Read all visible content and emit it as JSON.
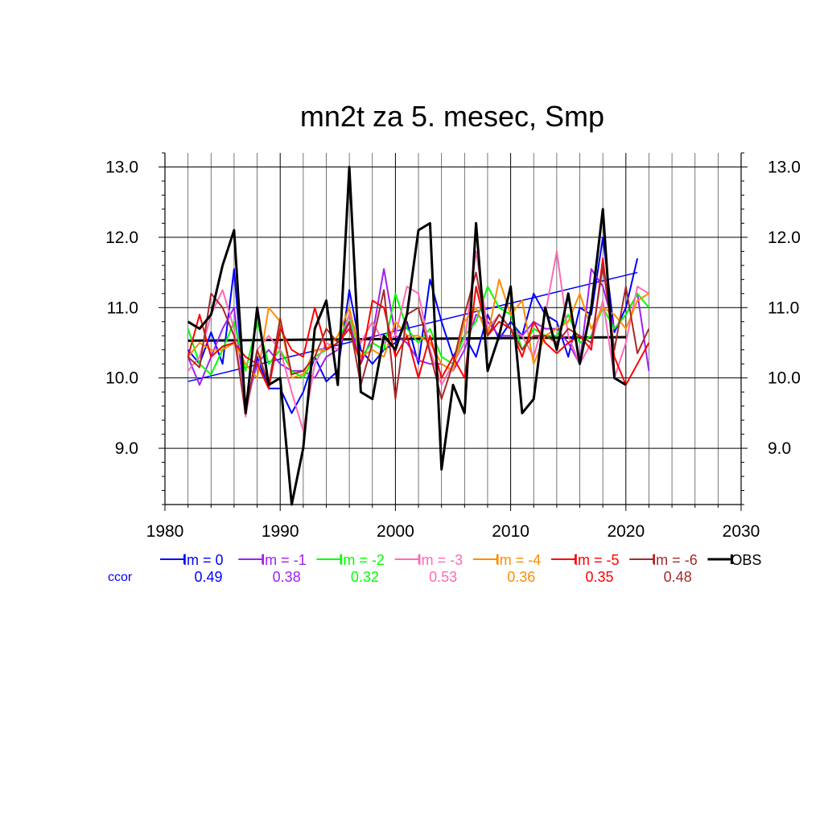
{
  "chart_data": {
    "type": "line",
    "title": "mn2t za 5. mesec, Smp",
    "xlabel": "",
    "ylabel": "",
    "xlim": [
      1980,
      2030
    ],
    "ylim": [
      8.2,
      13.2
    ],
    "x_ticks": [
      "1980",
      "1990",
      "2000",
      "2010",
      "2020",
      "2030"
    ],
    "y_ticks": [
      "9.0",
      "10.0",
      "11.0",
      "12.0",
      "13.0"
    ],
    "x_tick_values": [
      1980,
      1990,
      2000,
      2010,
      2020,
      2030
    ],
    "y_tick_values": [
      9,
      10,
      11,
      12,
      13
    ],
    "grid": "on",
    "legend_position": "bottom",
    "ccor_label": "ccor",
    "series": [
      {
        "name": "lm = 0",
        "color": "#0000ff",
        "ccor": "0.49",
        "x": [
          1982,
          1983,
          1984,
          1985,
          1986,
          1987,
          1988,
          1989,
          1990,
          1991,
          1992,
          1993,
          1994,
          1995,
          1996,
          1997,
          1998,
          1999,
          2000,
          2001,
          2002,
          2003,
          2004,
          2005,
          2006,
          2007,
          2008,
          2009,
          2010,
          2011,
          2012,
          2013,
          2014,
          2015,
          2016,
          2017,
          2018,
          2019,
          2020,
          2021
        ],
        "y": [
          10.4,
          10.2,
          10.65,
          10.2,
          11.55,
          9.5,
          10.3,
          9.85,
          9.85,
          9.5,
          9.8,
          10.3,
          9.95,
          10.1,
          11.25,
          10.4,
          10.2,
          10.4,
          10.5,
          10.8,
          10.2,
          11.4,
          10.8,
          10.3,
          10.6,
          10.3,
          10.9,
          10.55,
          10.8,
          10.6,
          11.2,
          10.9,
          10.8,
          10.3,
          11.0,
          10.9,
          12.0,
          10.65,
          11.0,
          11.7
        ],
        "trend": [
          [
            1982,
            9.95
          ],
          [
            2021,
            11.5
          ]
        ]
      },
      {
        "name": "lm = -1",
        "color": "#a020f0",
        "ccor": "0.38",
        "x": [
          1982,
          1983,
          1984,
          1985,
          1986,
          1987,
          1988,
          1989,
          1990,
          1991,
          1992,
          1993,
          1994,
          1995,
          1996,
          1997,
          1998,
          1999,
          2000,
          2001,
          2002,
          2003,
          2004,
          2005,
          2006,
          2007,
          2008,
          2009,
          2010,
          2011,
          2012,
          2013,
          2014,
          2015,
          2016,
          2017,
          2018,
          2019,
          2020,
          2021,
          2022
        ],
        "y": [
          10.3,
          9.9,
          10.3,
          10.7,
          11.0,
          9.6,
          10.2,
          10.4,
          10.2,
          10.1,
          10.1,
          10.0,
          10.3,
          10.4,
          10.8,
          10.2,
          10.6,
          11.55,
          10.6,
          10.5,
          10.25,
          10.2,
          10.2,
          10.1,
          10.4,
          10.9,
          10.8,
          10.6,
          10.6,
          10.6,
          10.8,
          10.7,
          10.7,
          10.5,
          10.2,
          11.55,
          11.3,
          10.7,
          10.9,
          11.2,
          10.1
        ]
      },
      {
        "name": "lm = -2",
        "color": "#00ff00",
        "ccor": "0.32",
        "x": [
          1982,
          1983,
          1984,
          1985,
          1986,
          1987,
          1988,
          1989,
          1990,
          1991,
          1992,
          1993,
          1994,
          1995,
          1996,
          1997,
          1998,
          1999,
          2000,
          2001,
          2002,
          2003,
          2004,
          2005,
          2006,
          2007,
          2008,
          2009,
          2010,
          2011,
          2012,
          2013,
          2014,
          2015,
          2016,
          2017,
          2018,
          2019,
          2020,
          2021,
          2022
        ],
        "y": [
          10.7,
          10.2,
          10.05,
          10.4,
          10.8,
          10.1,
          10.8,
          10.2,
          10.4,
          10.1,
          10.0,
          10.3,
          10.4,
          10.5,
          10.9,
          10.3,
          10.5,
          10.4,
          11.2,
          10.7,
          10.5,
          10.7,
          10.3,
          10.2,
          10.6,
          10.8,
          11.3,
          11.0,
          10.9,
          10.4,
          10.7,
          10.6,
          10.6,
          10.9,
          10.5,
          10.6,
          11.0,
          10.7,
          10.9,
          11.2,
          11.0
        ]
      },
      {
        "name": "lm = -3",
        "color": "#ff69b4",
        "ccor": "0.53",
        "x": [
          1982,
          1983,
          1984,
          1985,
          1986,
          1987,
          1988,
          1989,
          1990,
          1991,
          1992,
          1993,
          1994,
          1995,
          1996,
          1997,
          1998,
          1999,
          2000,
          2001,
          2002,
          2003,
          2004,
          2005,
          2006,
          2007,
          2008,
          2009,
          2010,
          2011,
          2012,
          2013,
          2014,
          2015,
          2016,
          2017,
          2018,
          2019,
          2020,
          2021,
          2022
        ],
        "y": [
          10.1,
          10.3,
          10.9,
          11.25,
          10.7,
          9.45,
          10.4,
          10.6,
          10.4,
          9.8,
          9.25,
          10.2,
          10.5,
          10.4,
          10.9,
          10.5,
          10.8,
          10.5,
          10.6,
          11.3,
          11.2,
          10.4,
          9.9,
          10.2,
          10.5,
          11.8,
          10.7,
          10.9,
          10.7,
          10.6,
          10.3,
          10.9,
          11.8,
          10.6,
          10.2,
          10.5,
          11.1,
          10.0,
          10.5,
          11.3,
          11.2
        ]
      },
      {
        "name": "lm = -4",
        "color": "#ff8c00",
        "ccor": "0.36",
        "x": [
          1982,
          1983,
          1984,
          1985,
          1986,
          1987,
          1988,
          1989,
          1990,
          1991,
          1992,
          1993,
          1994,
          1995,
          1996,
          1997,
          1998,
          1999,
          2000,
          2001,
          2002,
          2003,
          2004,
          2005,
          2006,
          2007,
          2008,
          2009,
          2010,
          2011,
          2012,
          2013,
          2014,
          2015,
          2016,
          2017,
          2018,
          2019,
          2020,
          2021,
          2022
        ],
        "y": [
          10.3,
          10.5,
          10.4,
          10.4,
          10.5,
          10.2,
          10.0,
          11.0,
          10.8,
          10.0,
          10.05,
          10.4,
          10.4,
          10.6,
          11.0,
          10.3,
          10.4,
          10.3,
          10.8,
          10.6,
          10.6,
          10.5,
          10.2,
          10.1,
          10.8,
          11.0,
          10.6,
          11.4,
          10.9,
          11.1,
          10.2,
          10.6,
          10.7,
          10.8,
          11.2,
          10.7,
          11.0,
          10.9,
          10.7,
          11.1,
          11.2
        ]
      },
      {
        "name": "lm = -5",
        "color": "#ff0000",
        "ccor": "0.35",
        "x": [
          1982,
          1983,
          1984,
          1985,
          1986,
          1987,
          1988,
          1989,
          1990,
          1991,
          1992,
          1993,
          1994,
          1995,
          1996,
          1997,
          1998,
          1999,
          2000,
          2001,
          2002,
          2003,
          2004,
          2005,
          2006,
          2007,
          2008,
          2009,
          2010,
          2011,
          2012,
          2013,
          2014,
          2015,
          2016,
          2017,
          2018,
          2019,
          2020,
          2021,
          2022
        ],
        "y": [
          10.3,
          10.9,
          10.3,
          10.45,
          10.5,
          10.3,
          10.2,
          9.85,
          10.7,
          10.4,
          10.3,
          11.0,
          10.4,
          10.5,
          10.7,
          10.2,
          11.1,
          11.0,
          10.3,
          10.6,
          10.0,
          10.6,
          10.0,
          10.3,
          10.0,
          11.3,
          10.6,
          10.8,
          10.7,
          10.3,
          10.8,
          10.5,
          10.35,
          10.5,
          10.6,
          10.4,
          11.7,
          10.3,
          9.9,
          10.2,
          10.5
        ]
      },
      {
        "name": "lm = -6",
        "color": "#a52a2a",
        "ccor": "0.48",
        "x": [
          1982,
          1983,
          1984,
          1985,
          1986,
          1987,
          1988,
          1989,
          1990,
          1991,
          1992,
          1993,
          1994,
          1995,
          1996,
          1997,
          1998,
          1999,
          2000,
          2001,
          2002,
          2003,
          2004,
          2005,
          2006,
          2007,
          2008,
          2009,
          2010,
          2011,
          2012,
          2013,
          2014,
          2015,
          2016,
          2017,
          2018,
          2019,
          2020,
          2021,
          2022
        ],
        "y": [
          10.3,
          10.15,
          11.2,
          11.0,
          10.6,
          9.5,
          10.4,
          9.9,
          10.85,
          10.05,
          10.1,
          10.3,
          10.7,
          10.5,
          10.8,
          9.9,
          10.5,
          11.25,
          9.7,
          10.9,
          11.0,
          10.35,
          9.7,
          10.2,
          10.9,
          11.5,
          10.6,
          10.9,
          10.7,
          10.4,
          10.6,
          10.6,
          10.5,
          10.7,
          10.6,
          10.5,
          11.6,
          10.4,
          11.3,
          10.35,
          10.7
        ]
      },
      {
        "name": "OBS",
        "color": "#000000",
        "ccor": "",
        "x": [
          1982,
          1983,
          1984,
          1985,
          1986,
          1987,
          1988,
          1989,
          1990,
          1991,
          1992,
          1993,
          1994,
          1995,
          1996,
          1997,
          1998,
          1999,
          2000,
          2001,
          2002,
          2003,
          2004,
          2005,
          2006,
          2007,
          2008,
          2009,
          2010,
          2011,
          2012,
          2013,
          2014,
          2015,
          2016,
          2017,
          2018,
          2019,
          2020
        ],
        "y": [
          10.8,
          10.7,
          10.9,
          11.6,
          12.1,
          9.5,
          11.0,
          9.9,
          10.0,
          8.2,
          9.0,
          10.7,
          11.1,
          9.9,
          13.0,
          9.8,
          9.7,
          10.6,
          10.4,
          10.9,
          12.1,
          12.2,
          8.7,
          9.9,
          9.5,
          12.2,
          10.1,
          10.6,
          11.3,
          9.5,
          9.7,
          11.0,
          10.4,
          11.2,
          10.2,
          11.0,
          12.4,
          10.0,
          9.9
        ],
        "trend": [
          [
            1982,
            10.53
          ],
          [
            2020,
            10.58
          ]
        ]
      }
    ]
  }
}
